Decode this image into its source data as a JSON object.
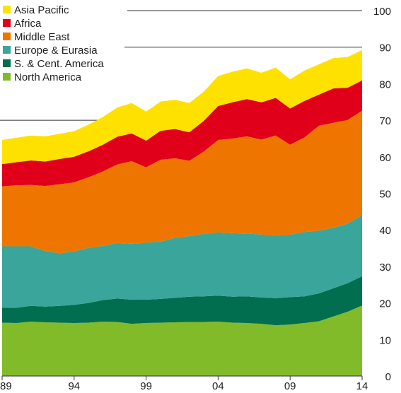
{
  "chart_data": {
    "type": "area",
    "stacked": true,
    "x": [
      1989,
      1990,
      1991,
      1992,
      1993,
      1994,
      1995,
      1996,
      1997,
      1998,
      1999,
      2000,
      2001,
      2002,
      2003,
      2004,
      2005,
      2006,
      2007,
      2008,
      2009,
      2010,
      2011,
      2012,
      2013,
      2014
    ],
    "x_tick_labels": [
      "89",
      "94",
      "99",
      "04",
      "09",
      "14"
    ],
    "x_tick_values": [
      1989,
      1994,
      1999,
      2004,
      2009,
      2014
    ],
    "ylim": [
      0,
      100
    ],
    "y_ticks": [
      0,
      10,
      20,
      30,
      40,
      50,
      60,
      70,
      80,
      90,
      100
    ],
    "y_axis_position": "right",
    "grid": "partial horizontal lines at 70, 90 and 100",
    "legend_position": "top-left",
    "series": [
      {
        "name": "North America",
        "color": "#82bb29",
        "values": [
          14.6,
          14.5,
          14.9,
          14.7,
          14.6,
          14.5,
          14.6,
          14.9,
          14.8,
          14.3,
          14.5,
          14.6,
          14.7,
          14.8,
          14.8,
          14.9,
          14.6,
          14.5,
          14.3,
          13.9,
          14.1,
          14.5,
          15.0,
          16.3,
          17.6,
          19.3
        ]
      },
      {
        "name": "S. & Cent. America",
        "color": "#006e4f",
        "values": [
          4.1,
          4.2,
          4.3,
          4.3,
          4.6,
          5.0,
          5.4,
          5.9,
          6.4,
          6.6,
          6.4,
          6.5,
          6.7,
          6.9,
          7.0,
          7.1,
          7.1,
          7.3,
          7.2,
          7.4,
          7.5,
          7.3,
          7.6,
          7.7,
          7.8,
          8.0
        ]
      },
      {
        "name": "Europe & Eurasia",
        "color": "#3aa59a",
        "values": [
          16.8,
          16.8,
          16.3,
          15.2,
          14.4,
          14.6,
          15.1,
          14.8,
          15.2,
          15.3,
          15.6,
          15.7,
          16.4,
          16.6,
          17.1,
          17.3,
          17.4,
          17.2,
          17.2,
          17.2,
          17.1,
          17.6,
          17.2,
          16.6,
          16.3,
          16.7
        ]
      },
      {
        "name": "Middle East",
        "color": "#ee7600",
        "values": [
          16.4,
          16.7,
          16.8,
          17.8,
          18.9,
          18.9,
          19.3,
          20.4,
          21.5,
          22.6,
          20.6,
          22.4,
          21.8,
          20.6,
          22.5,
          25.3,
          25.9,
          26.6,
          26.0,
          27.3,
          24.6,
          25.9,
          28.7,
          28.7,
          28.4,
          28.6
        ]
      },
      {
        "name": "Africa",
        "color": "#e1001a",
        "values": [
          6.1,
          6.3,
          6.7,
          6.7,
          6.9,
          7.0,
          7.1,
          7.3,
          7.6,
          7.6,
          7.3,
          7.9,
          8.0,
          7.8,
          8.4,
          9.3,
          9.9,
          10.2,
          10.2,
          10.3,
          9.9,
          10.0,
          8.5,
          9.4,
          8.8,
          8.3
        ]
      },
      {
        "name": "Asia Pacific",
        "color": "#ffe100",
        "values": [
          6.6,
          6.7,
          6.8,
          6.9,
          6.9,
          7.0,
          7.3,
          7.6,
          8.0,
          8.3,
          8.0,
          8.0,
          8.0,
          8.0,
          8.0,
          8.2,
          8.4,
          8.4,
          8.1,
          8.3,
          8.0,
          8.3,
          8.3,
          8.3,
          8.4,
          8.3
        ]
      }
    ],
    "legend": [
      "Asia Pacific",
      "Africa",
      "Middle East",
      "Europe & Eurasia",
      "S. & Cent. America",
      "North America"
    ]
  }
}
